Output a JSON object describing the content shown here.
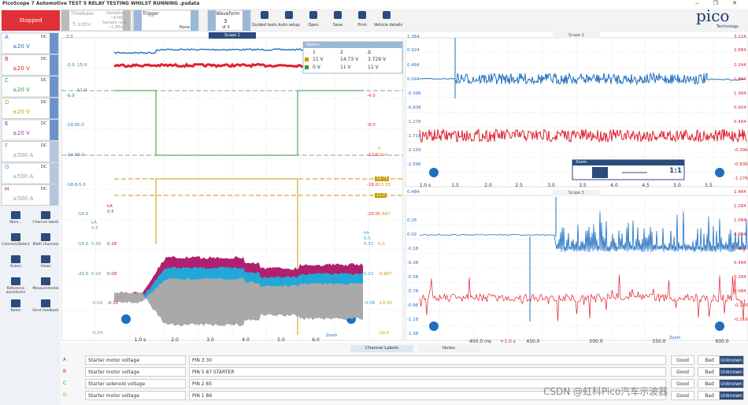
{
  "window_title": "PicoScope 7 Automotive TEST 5 RELAY TESTING WHILST RUNNING .psdata",
  "toolbar": {
    "status": "Stopped",
    "timebase": {
      "label": "Timebase",
      "value": "5 s/div"
    },
    "samples": {
      "label": "Samples",
      "value": "~6 MS"
    },
    "sample_rate": {
      "label": "Sample rate",
      "value": "~1 MS/s"
    },
    "trigger": {
      "label": "Trigger",
      "value": "None"
    },
    "waveform": {
      "label": "Waveform",
      "value": "3",
      "of": "of 3"
    },
    "buttons": [
      "Guided tests",
      "Auto setup",
      "Open",
      "Save",
      "Print",
      "Vehicle details"
    ]
  },
  "logo": {
    "name": "pico",
    "sub": "Technology"
  },
  "channels": [
    {
      "letter": "A",
      "range": "±20 V",
      "coupling": "DC",
      "color": "#1f6fc0"
    },
    {
      "letter": "B",
      "range": "±20 V",
      "coupling": "DC",
      "color": "#e0202e"
    },
    {
      "letter": "C",
      "range": "±20 V",
      "coupling": "DC",
      "color": "#2a9a3a"
    },
    {
      "letter": "D",
      "range": "±20 V",
      "coupling": "DC",
      "color": "#c99a00"
    },
    {
      "letter": "E",
      "range": "±20 V",
      "coupling": "DC",
      "color": "#8a3db0"
    },
    {
      "letter": "F",
      "range": "±500 A",
      "coupling": "DC",
      "color": "#8c8c8c"
    },
    {
      "letter": "G",
      "range": "±500 A",
      "coupling": "DC",
      "color": "#22a8d8"
    },
    {
      "letter": "H",
      "range": "±500 A",
      "coupling": "DC",
      "color": "#b0206e"
    }
  ],
  "tools": [
    "More...",
    "Channel labels",
    "Connect/Detect",
    "Math channels",
    "Rulers",
    "Views",
    "Reference waveforms",
    "Measurements",
    "Notes",
    "Send feedback"
  ],
  "scopes": [
    {
      "title": "Scope 1",
      "xticks": [
        "1.0 s",
        "2.0",
        "3.0",
        "4.0",
        "5.0",
        "6.0"
      ],
      "axes": [
        {
          "color": "#1f6fc0",
          "labels": [
            "2.0",
            "-2.0",
            "-6.0",
            "-10.0",
            "-14.0",
            "-18.0"
          ]
        },
        {
          "color": "#2a9a3a",
          "labels": [
            "15.0",
            "11.0",
            "5.0",
            "0.0",
            "-5.0",
            "-10.0",
            "-15.0",
            "-20.0"
          ]
        },
        {
          "color": "#8c8c8c",
          "labels": [
            "kA",
            "0.5",
            "0.36",
            "0.16",
            "-0.04",
            "-0.24"
          ]
        },
        {
          "color": "#b0206e",
          "labels": [
            "kA",
            "0.5",
            "0.28",
            "0.08",
            "-0.12"
          ]
        },
        {
          "color": "#e0202e",
          "labels": [
            "-4.0",
            "-8.0",
            "-12.0",
            "-16.0",
            "-20.0"
          ]
        },
        {
          "color": "#c99a00",
          "labels": [
            "V",
            "20.0",
            "13.33",
            "6.667",
            "0.0",
            "-6.667",
            "-13.33",
            "-20.0"
          ]
        },
        {
          "color": "#22a8d8",
          "labels": [
            "kA",
            "0.5",
            "0.32",
            "0.12",
            "-0.08"
          ]
        }
      ]
    },
    {
      "title": "Scope 2",
      "xticks": [
        "1.0 s",
        "1.5",
        "2.0",
        "2.5",
        "3.0",
        "3.5",
        "4.0",
        "4.5",
        "5.0",
        "5.5"
      ],
      "axes": [
        {
          "color": "#1f6fc0",
          "labels": [
            "1.364",
            "0.924",
            "0.484",
            "0.044",
            "-0.396",
            "-0.836",
            "-1.276",
            "-1.716",
            "-2.156",
            "-2.596"
          ]
        },
        {
          "color": "#e0202e",
          "labels": [
            "3.124",
            "2.684",
            "2.244",
            "1.804",
            "1.364",
            "0.924",
            "0.484",
            "0.044",
            "-0.396",
            "-0.836",
            "-1.276"
          ]
        }
      ]
    },
    {
      "title": "Scope 3",
      "xticks": [
        "400.0 ms",
        "+1.0 s",
        "450.0",
        "500.0",
        "550.0",
        "600.0"
      ],
      "axes": [
        {
          "color": "#1f6fc0",
          "labels": [
            "0.484",
            "0.26",
            "0.02",
            "-0.18",
            "-0.38",
            "-0.58",
            "-0.78",
            "-0.98",
            "-1.18",
            "-1.38"
          ]
        },
        {
          "color": "#e0202e",
          "labels": [
            "1.484",
            "1.284",
            "1.084",
            "0.884",
            "0.684",
            "0.484",
            "0.284",
            "0.084",
            "-0.116",
            "-0.316"
          ]
        }
      ]
    }
  ],
  "rulers": {
    "title": "Rulers",
    "header": [
      "1",
      "2",
      "Δ"
    ],
    "rows": [
      [
        "11 V",
        "14.73 V",
        "3.729 V"
      ],
      [
        "0 V",
        "11 V",
        "11 V"
      ]
    ],
    "markers": [
      "14.73",
      "11.0"
    ]
  },
  "zoom": {
    "title": "Zoom",
    "ratio": "1:1"
  },
  "bottom_tabs": [
    "Channel Labels",
    "Notes"
  ],
  "channel_labels": [
    {
      "letter": "A",
      "name": "Starter motor voltage",
      "pin": "PIN 3  30"
    },
    {
      "letter": "B",
      "name": "Starter motor voltage",
      "pin": "PIN 5 87 STARTER"
    },
    {
      "letter": "C",
      "name": "Starter solenoid voltage",
      "pin": "PIN 2 85"
    },
    {
      "letter": "D",
      "name": "Starter motor voltage",
      "pin": "PIN 1 86"
    }
  ],
  "rating_buttons": [
    "Good",
    "Bad",
    "Unknown"
  ],
  "watermark": "CSDN @虹科Pico汽车示波器"
}
